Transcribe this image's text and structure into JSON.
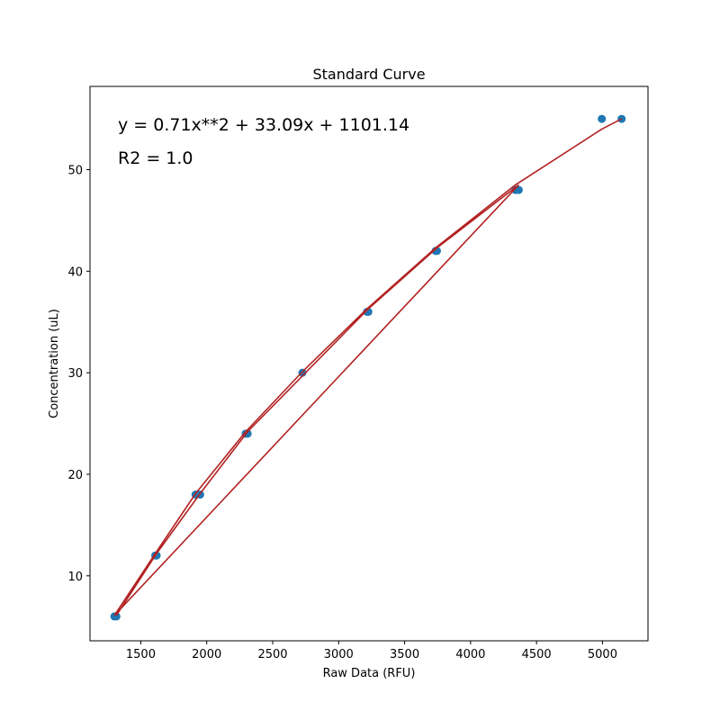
{
  "chart_data": {
    "type": "scatter",
    "title": "Standard Curve",
    "xlabel": "Raw Data (RFU)",
    "ylabel": "Concentration (uL)",
    "xlim": [
      1115,
      5345
    ],
    "ylim": [
      3.6,
      58.2
    ],
    "xticks": [
      1500,
      2000,
      2500,
      3000,
      3500,
      4000,
      4500,
      5000
    ],
    "yticks": [
      10,
      20,
      30,
      40,
      50
    ],
    "grid": false,
    "annotations": [
      "y = 0.71x**2 + 33.09x + 1101.14",
      "R2 = 1.0"
    ],
    "series": [
      {
        "type": "scatter",
        "color": "#1f77b4",
        "x": [
          1300,
          1315,
          1610,
          1620,
          1915,
          1950,
          2295,
          2310,
          2725,
          3215,
          3225,
          3735,
          3745,
          4340,
          4365,
          4995,
          5145
        ],
        "y": [
          6,
          6,
          12,
          12,
          18,
          18,
          24,
          24,
          30,
          36,
          36,
          42,
          42,
          48,
          48,
          55,
          55
        ]
      },
      {
        "type": "line",
        "color": "#b22222",
        "x": [
          5145,
          4995,
          4340,
          3735,
          3215,
          2725,
          2295,
          1915,
          1610,
          1300,
          4365,
          3745,
          3225,
          2310,
          1950,
          1620,
          1315
        ],
        "y": [
          55,
          54,
          48.5,
          42.3,
          36.3,
          30.1,
          24.2,
          18.1,
          12.2,
          6.1,
          48.5,
          42.3,
          36.3,
          24.2,
          18.1,
          12.2,
          6.1
        ]
      }
    ]
  }
}
